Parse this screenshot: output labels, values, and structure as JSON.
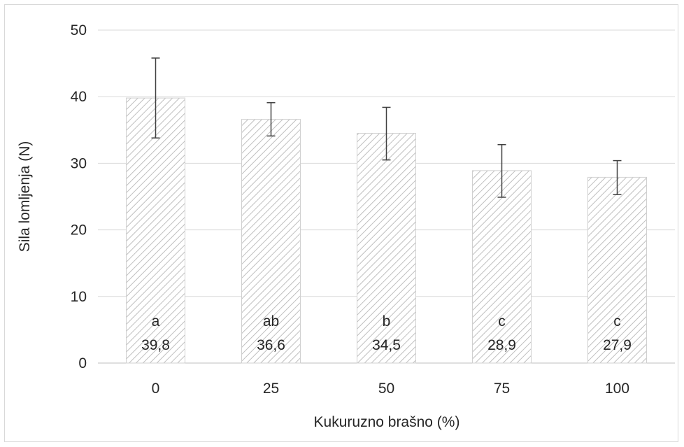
{
  "chart_data": {
    "type": "bar",
    "categories": [
      "0",
      "25",
      "50",
      "75",
      "100"
    ],
    "values": [
      39.8,
      36.6,
      34.5,
      28.9,
      27.9
    ],
    "error_low": [
      33.8,
      34.1,
      30.5,
      24.9,
      25.3
    ],
    "error_high": [
      45.8,
      39.1,
      38.4,
      32.8,
      30.4
    ],
    "group_letters": [
      "a",
      "ab",
      "b",
      "c",
      "c"
    ],
    "value_labels": [
      "39,8",
      "36,6",
      "34,5",
      "28,9",
      "27,9"
    ],
    "yticks": [
      "0",
      "10",
      "20",
      "30",
      "40",
      "50"
    ],
    "ylim": [
      0,
      50
    ],
    "xlabel": "Kukuruzno brašno (%)",
    "ylabel": "Sila lomljenja (N)",
    "title": "",
    "grid": true,
    "legend": "none",
    "bar_fill": "hatched",
    "colors": {
      "bar_hatch": "#bfbfbf",
      "bar_border": "#d0d0d0",
      "grid": "#d9d9d9",
      "axis": "#bfbfbf",
      "error_bar": "#404040",
      "text": "#262626"
    }
  }
}
